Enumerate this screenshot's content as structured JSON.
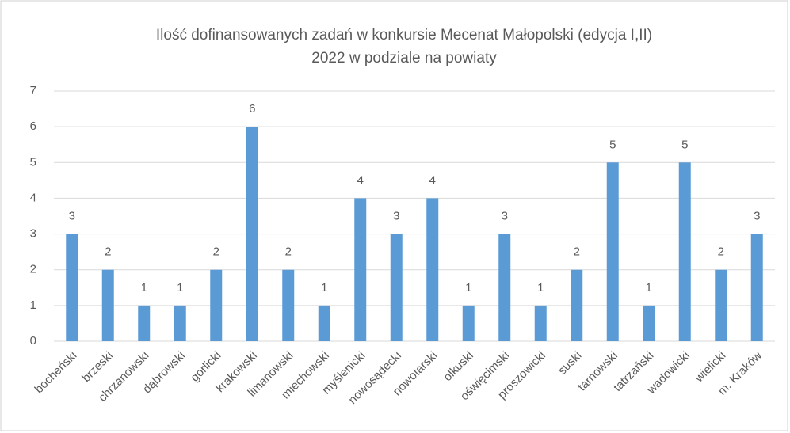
{
  "chart_data": {
    "type": "bar",
    "title": [
      "Ilość dofinansowanych zadań w konkursie Mecenat Małopolski (edycja I,II)",
      "2022 w podziale na powiaty"
    ],
    "categories": [
      "bocheński",
      "brzeski",
      "chrzanowski",
      "dąbrowski",
      "gorlicki",
      "krakowski",
      "limanowski",
      "miechowski",
      "myślenicki",
      "nowosądecki",
      "nowotarski",
      "olkuski",
      "oświęcimski",
      "proszowicki",
      "suski",
      "tarnowski",
      "tatrzański",
      "wadowicki",
      "wielicki",
      "m. Kraków"
    ],
    "values": [
      3,
      2,
      1,
      1,
      2,
      6,
      2,
      1,
      4,
      3,
      4,
      1,
      3,
      1,
      2,
      5,
      1,
      5,
      2,
      3
    ],
    "color": "#5b9bd5",
    "ylim": [
      0,
      7
    ],
    "yticks": [
      0,
      1,
      2,
      3,
      4,
      5,
      6,
      7
    ],
    "grid": true
  }
}
